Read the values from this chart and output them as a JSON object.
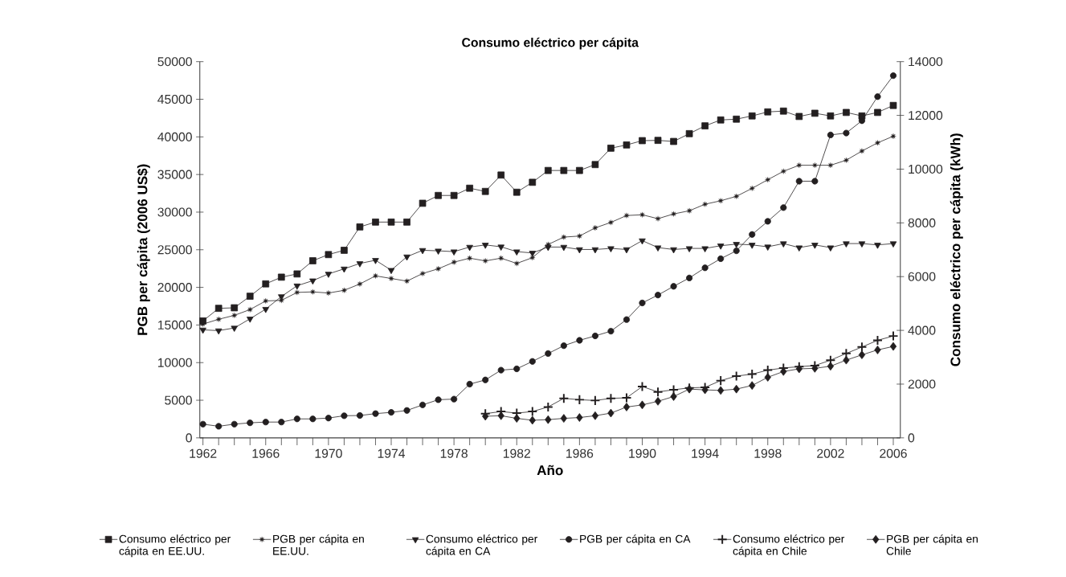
{
  "chart_data": {
    "type": "line",
    "title": "Consumo eléctrico per cápita",
    "xlabel": "Año",
    "ylabel": "PGB per cápita (2006 US$)",
    "y2label": "Consumo eléctrico per cápita (kWh)",
    "x": [
      1962,
      1963,
      1964,
      1965,
      1966,
      1967,
      1968,
      1969,
      1970,
      1971,
      1972,
      1973,
      1974,
      1975,
      1976,
      1977,
      1978,
      1979,
      1980,
      1981,
      1982,
      1983,
      1984,
      1985,
      1986,
      1987,
      1988,
      1989,
      1990,
      1991,
      1992,
      1993,
      1994,
      1995,
      1996,
      1997,
      1998,
      1999,
      2000,
      2001,
      2002,
      2003,
      2004,
      2005,
      2006
    ],
    "xlim": [
      1961.8,
      2006.45
    ],
    "xticks": [
      1962,
      {
        "value": 1963,
        "label": null
      },
      {
        "value": 1964,
        "label": null
      },
      {
        "value": 1965,
        "label": null
      },
      1966,
      {
        "value": 1967,
        "label": null
      },
      {
        "value": 1968,
        "label": null
      },
      {
        "value": 1969,
        "label": null
      },
      1970,
      {
        "value": 1971,
        "label": null
      },
      {
        "value": 1972,
        "label": null
      },
      {
        "value": 1973,
        "label": null
      },
      1974,
      {
        "value": 1975,
        "label": null
      },
      {
        "value": 1976,
        "label": null
      },
      {
        "value": 1977,
        "label": null
      },
      1978,
      {
        "value": 1979,
        "label": null
      },
      {
        "value": 1980,
        "label": null
      },
      {
        "value": 1981,
        "label": null
      },
      1982,
      {
        "value": 1983,
        "label": null
      },
      {
        "value": 1984,
        "label": null
      },
      {
        "value": 1985,
        "label": null
      },
      1986,
      {
        "value": 1987,
        "label": null
      },
      {
        "value": 1988,
        "label": null
      },
      {
        "value": 1989,
        "label": null
      },
      1990,
      {
        "value": 1991,
        "label": null
      },
      {
        "value": 1992,
        "label": null
      },
      {
        "value": 1993,
        "label": null
      },
      1994,
      {
        "value": 1995,
        "label": null
      },
      {
        "value": 1996,
        "label": null
      },
      {
        "value": 1997,
        "label": null
      },
      1998,
      {
        "value": 1999,
        "label": null
      },
      {
        "value": 2000,
        "label": null
      },
      {
        "value": 2001,
        "label": null
      },
      2002,
      {
        "value": 2003,
        "label": null
      },
      {
        "value": 2004,
        "label": null
      },
      {
        "value": 2005,
        "label": null
      },
      2006
    ],
    "ylim": [
      0,
      50000
    ],
    "yticks": [
      0,
      5000,
      10000,
      15000,
      20000,
      25000,
      30000,
      35000,
      40000,
      45000,
      50000
    ],
    "y2lim": [
      0,
      14000
    ],
    "y2ticks": [
      0,
      2000,
      4000,
      6000,
      8000,
      10000,
      12000,
      14000
    ],
    "legend": "bottom",
    "line_style": "solid",
    "series": [
      {
        "name": "Consumo eléctrico per cápita en EE.UU.",
        "color": "#231f20",
        "marker": "square",
        "axis": "y2",
        "values": [
          4350,
          4820,
          4840,
          5270,
          5730,
          5980,
          6100,
          6590,
          6820,
          6980,
          7850,
          8030,
          8030,
          8030,
          8730,
          9020,
          9020,
          9290,
          9170,
          9780,
          9140,
          9510,
          9950,
          9950,
          9950,
          10170,
          10780,
          10900,
          11060,
          11070,
          11030,
          11320,
          11610,
          11830,
          11860,
          11980,
          12130,
          12160,
          11960,
          12080,
          11980,
          12110,
          11980,
          12110,
          12370
        ]
      },
      {
        "name": "PGB per cápita en EE.UU.",
        "color": "#231f20",
        "marker": "star",
        "values": [
          15120,
          15760,
          16280,
          17050,
          18200,
          18270,
          19330,
          19400,
          19250,
          19610,
          20450,
          21530,
          21180,
          20830,
          21840,
          22470,
          23350,
          23880,
          23520,
          23880,
          23180,
          23950,
          25700,
          26680,
          26820,
          27910,
          28630,
          29550,
          29650,
          29130,
          29760,
          30180,
          31050,
          31510,
          32100,
          33160,
          34310,
          35430,
          36230,
          36230,
          36230,
          36900,
          38120,
          39210,
          40090
        ]
      },
      {
        "name": "Consumo eléctrico per cápita en CA",
        "color": "#231f20",
        "marker": "triangle",
        "axis": "y2",
        "values": [
          4020,
          3990,
          4090,
          4430,
          4790,
          5260,
          5660,
          5850,
          6100,
          6290,
          6490,
          6610,
          6240,
          6740,
          6980,
          6960,
          6930,
          7100,
          7180,
          7110,
          6930,
          6880,
          7100,
          7100,
          7010,
          7010,
          7050,
          7010,
          7340,
          7080,
          7010,
          7050,
          7050,
          7150,
          7210,
          7180,
          7110,
          7230,
          7080,
          7180,
          7080,
          7230,
          7230,
          7180,
          7230
        ]
      },
      {
        "name": "PGB per cápita en CA",
        "color": "#231f20",
        "marker": "circle",
        "values": [
          1820,
          1540,
          1820,
          2000,
          2100,
          2100,
          2520,
          2520,
          2630,
          2940,
          2970,
          3220,
          3390,
          3640,
          4380,
          5070,
          5150,
          7140,
          7700,
          9000,
          9170,
          10160,
          11210,
          12250,
          12960,
          13550,
          14180,
          15720,
          17930,
          18980,
          20140,
          21250,
          22600,
          23810,
          24860,
          27030,
          28780,
          30600,
          34110,
          34110,
          40260,
          40510,
          42150,
          45350,
          48140
        ]
      },
      {
        "name": "Consumo eléctrico per cápita en Chile",
        "color": "#231f20",
        "marker": "cross",
        "axis": "y2",
        "x": [
          1980,
          1981,
          1982,
          1983,
          1984,
          1985,
          1986,
          1987,
          1988,
          1989,
          1990,
          1991,
          1992,
          1993,
          1994,
          1995,
          1996,
          1997,
          1998,
          1999,
          2000,
          2001,
          2002,
          2003,
          2004,
          2005,
          2006
        ],
        "values": [
          900,
          980,
          920,
          980,
          1150,
          1470,
          1420,
          1390,
          1470,
          1490,
          1910,
          1710,
          1790,
          1860,
          1880,
          2130,
          2300,
          2370,
          2520,
          2600,
          2650,
          2690,
          2890,
          3140,
          3380,
          3630,
          3790
        ]
      },
      {
        "name": "PGB per cápita en Chile",
        "color": "#231f20",
        "marker": "diamond",
        "x": [
          1980,
          1981,
          1982,
          1983,
          1984,
          1985,
          1986,
          1987,
          1988,
          1989,
          1990,
          1991,
          1992,
          1993,
          1994,
          1995,
          1996,
          1997,
          1998,
          1999,
          2000,
          2001,
          2002,
          2003,
          2004,
          2005,
          2006
        ],
        "values": [
          2870,
          2940,
          2590,
          2340,
          2420,
          2590,
          2700,
          2940,
          3290,
          4100,
          4380,
          4860,
          5490,
          6480,
          6380,
          6300,
          6480,
          6960,
          8050,
          8820,
          9170,
          9240,
          9520,
          10330,
          11030,
          11690,
          12150
        ]
      }
    ]
  }
}
